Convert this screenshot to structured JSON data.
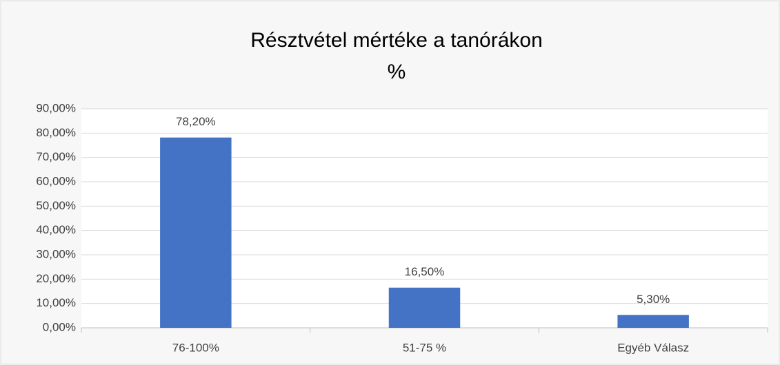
{
  "chart_data": {
    "type": "bar",
    "title": "Résztvétel mértéke a tanórákon",
    "subtitle": "%",
    "categories": [
      "76-100%",
      "51-75 %",
      "Egyéb Válasz"
    ],
    "values": [
      78.2,
      16.5,
      5.3
    ],
    "value_labels": [
      "78,20%",
      "16,50%",
      "5,30%"
    ],
    "color": "#4472c4",
    "ylim": [
      0,
      90
    ],
    "yticks": [
      {
        "value": 0,
        "label": "0,00%"
      },
      {
        "value": 10,
        "label": "10,00%"
      },
      {
        "value": 20,
        "label": "20,00%"
      },
      {
        "value": 30,
        "label": "30,00%"
      },
      {
        "value": 40,
        "label": "40,00%"
      },
      {
        "value": 50,
        "label": "50,00%"
      },
      {
        "value": 60,
        "label": "60,00%"
      },
      {
        "value": 70,
        "label": "70,00%"
      },
      {
        "value": 80,
        "label": "80,00%"
      },
      {
        "value": 90,
        "label": "90,00%"
      }
    ],
    "grid": true
  }
}
